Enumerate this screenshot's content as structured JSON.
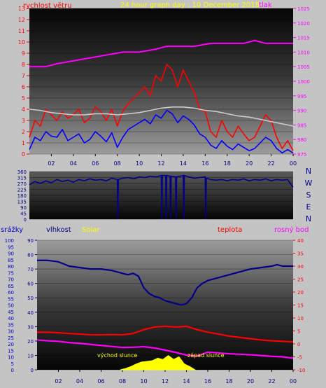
{
  "header": {
    "title": "24 hour graph day : 10 December 2018",
    "left_label": "rychlost větru",
    "right_label": "tlak",
    "colors": {
      "title": "#ffff00",
      "left_label": "#ff0000",
      "right_label": "#ff00ff"
    }
  },
  "compass": [
    "N",
    "W",
    "S",
    "E",
    "N"
  ],
  "bottom_header": {
    "labels": [
      {
        "text": "srážky",
        "color": "#0000cc"
      },
      {
        "text": "vlhkost",
        "color": "#000080"
      },
      {
        "text": "Solar",
        "color": "#ffff00"
      },
      {
        "text": "teplota",
        "color": "#ff0000"
      },
      {
        "text": "rosný bod",
        "color": "#ff00ff"
      }
    ]
  },
  "chart_data": [
    {
      "id": "wind-pressure",
      "type": "line",
      "x_ticks": [
        "02",
        "04",
        "06",
        "08",
        "10",
        "12",
        "14",
        "16",
        "18",
        "20",
        "22",
        "00"
      ],
      "xlim": [
        0,
        24
      ],
      "y_left": {
        "label": "rychlost větru",
        "range": [
          0,
          13
        ],
        "ticks": [
          0,
          1,
          2,
          3,
          4,
          5,
          6,
          7,
          8,
          9,
          10,
          11,
          12,
          13
        ]
      },
      "y_right": {
        "label": "tlak",
        "range": [
          975,
          1025
        ],
        "ticks": [
          975,
          980,
          985,
          990,
          995,
          1000,
          1005,
          1010,
          1015,
          1020,
          1025
        ]
      },
      "series": [
        {
          "name": "tlak",
          "axis": "right",
          "color": "#ff00ff",
          "x": [
            0,
            1.5,
            2.5,
            4,
            5.5,
            7,
            8.5,
            10,
            11.5,
            12.5,
            14,
            15,
            16.5,
            18,
            19.5,
            20.5,
            21.5,
            23,
            24
          ],
          "y": [
            1005,
            1005,
            1006,
            1007,
            1008,
            1009,
            1010,
            1010,
            1011,
            1012,
            1012,
            1012,
            1013,
            1013,
            1013,
            1014,
            1013,
            1013,
            1013
          ]
        },
        {
          "name": "",
          "axis": "left",
          "color": "#ff0000",
          "x": [
            0,
            0.5,
            1,
            1.5,
            2,
            2.5,
            3,
            3.5,
            4,
            4.5,
            5,
            5.5,
            6,
            6.5,
            7,
            7.5,
            8,
            8.5,
            9,
            9.5,
            10,
            10.5,
            11,
            11.5,
            12,
            12.5,
            13,
            13.5,
            14,
            14.5,
            15,
            15.5,
            16,
            16.5,
            17,
            17.5,
            18,
            18.5,
            19,
            19.5,
            20,
            20.5,
            21,
            21.5,
            22,
            22.5,
            23,
            23.5,
            24
          ],
          "y": [
            1.5,
            3,
            2.5,
            4,
            3.5,
            3,
            3.8,
            3.2,
            3.5,
            4,
            2.8,
            3.2,
            4.2,
            3.8,
            3,
            4,
            2.5,
            3.8,
            4.5,
            5,
            5.5,
            6,
            5.2,
            7,
            6.5,
            8,
            7.5,
            6,
            7.5,
            6.5,
            5.5,
            4,
            3.8,
            2,
            1.5,
            3,
            2,
            1.5,
            2.5,
            1.8,
            1.2,
            1.5,
            2.5,
            3.5,
            3,
            1.5,
            0.5,
            1.2,
            0.3
          ]
        },
        {
          "name": "",
          "axis": "left",
          "color": "#0000ff",
          "x": [
            0,
            0.5,
            1,
            1.5,
            2,
            2.5,
            3,
            3.5,
            4,
            4.5,
            5,
            5.5,
            6,
            6.5,
            7,
            7.5,
            8,
            8.5,
            9,
            9.5,
            10,
            10.5,
            11,
            11.5,
            12,
            12.5,
            13,
            13.5,
            14,
            14.5,
            15,
            15.5,
            16,
            16.5,
            17,
            17.5,
            18,
            18.5,
            19,
            19.5,
            20,
            20.5,
            21,
            21.5,
            22,
            22.5,
            23,
            23.5,
            24
          ],
          "y": [
            0.4,
            1.5,
            1.2,
            2,
            1.6,
            1.5,
            2.2,
            1.2,
            1.5,
            1.8,
            1,
            1.3,
            2,
            1.6,
            1.1,
            1.9,
            0.6,
            1.5,
            2.2,
            2.5,
            2.8,
            3.1,
            2.7,
            3.5,
            3.2,
            3.9,
            3.6,
            2.8,
            3.4,
            3.1,
            2.6,
            1.8,
            1.5,
            0.8,
            0.5,
            1.2,
            0.7,
            0.4,
            0.9,
            0.6,
            0.3,
            0.5,
            1,
            1.5,
            1.2,
            0.5,
            0.1,
            0.4,
            0.1
          ]
        },
        {
          "name": "",
          "axis": "left",
          "color": "#cccccc",
          "x": [
            0,
            1,
            2,
            3,
            4,
            5,
            6,
            7,
            8,
            9,
            10,
            11,
            12,
            13,
            14,
            15,
            16,
            17,
            18,
            19,
            20,
            21,
            22,
            23,
            24
          ],
          "y": [
            4,
            3.9,
            3.7,
            3.6,
            3.5,
            3.5,
            3.6,
            3.6,
            3.5,
            3.6,
            3.7,
            3.9,
            4.1,
            4.2,
            4.2,
            4.1,
            3.9,
            3.8,
            3.6,
            3.4,
            3.3,
            3.1,
            2.9,
            2.7,
            2.5
          ]
        }
      ]
    },
    {
      "id": "wind-direction",
      "type": "line",
      "x_ticks": [],
      "xlim": [
        0,
        24
      ],
      "y_left": {
        "range": [
          0,
          360
        ],
        "ticks": [
          0,
          45,
          90,
          135,
          180,
          225,
          270,
          315,
          360
        ]
      },
      "series": [
        {
          "name": "",
          "color": "#00008b",
          "x": [
            0,
            0.5,
            1,
            1.5,
            2,
            2.5,
            3,
            3.5,
            4,
            4.5,
            5,
            5.5,
            6,
            6.5,
            7,
            7.5,
            8,
            8.05,
            8.1,
            8.5,
            9,
            9.5,
            10,
            10.5,
            11,
            11.5,
            12,
            12.05,
            12.1,
            12.4,
            12.45,
            12.5,
            12.8,
            12.85,
            12.9,
            13.3,
            13.35,
            13.4,
            14,
            14.05,
            14.1,
            14.5,
            15,
            15.5,
            16,
            16.05,
            16.1,
            16.5,
            17,
            17.5,
            18,
            18.5,
            19,
            19.5,
            20,
            20.5,
            21,
            21.5,
            22,
            22.5,
            23,
            23.5,
            23.95,
            24
          ],
          "y": [
            260,
            285,
            270,
            290,
            275,
            300,
            285,
            295,
            280,
            300,
            290,
            305,
            295,
            300,
            290,
            310,
            300,
            0,
            300,
            310,
            315,
            305,
            320,
            315,
            325,
            320,
            330,
            0,
            330,
            330,
            0,
            330,
            325,
            0,
            325,
            320,
            0,
            320,
            330,
            0,
            330,
            320,
            310,
            315,
            320,
            0,
            310,
            300,
            295,
            300,
            290,
            300,
            295,
            305,
            290,
            300,
            295,
            305,
            290,
            300,
            295,
            300,
            245,
            250
          ]
        }
      ]
    },
    {
      "id": "humidity-temperature",
      "type": "line",
      "x_ticks": [
        "02",
        "04",
        "06",
        "08",
        "10",
        "12",
        "14",
        "16",
        "18",
        "20",
        "22",
        "00"
      ],
      "xlim": [
        0,
        24
      ],
      "y_srazky": {
        "label": "srážky",
        "range": [
          0,
          100
        ],
        "ticks": [
          0,
          5,
          10,
          15,
          20,
          25,
          30,
          35,
          40,
          45,
          50,
          55,
          60,
          65,
          70,
          75,
          80,
          85,
          90,
          95,
          100
        ]
      },
      "y_vlhkost": {
        "label": "vlhkost",
        "range": [
          0,
          90
        ],
        "ticks": [
          0,
          10,
          20,
          30,
          40,
          50,
          60,
          70,
          80,
          90
        ]
      },
      "y_right": {
        "label": "teplota",
        "range": [
          -10,
          40
        ],
        "ticks": [
          -10,
          -5,
          0,
          5,
          10,
          15,
          20,
          25,
          30,
          35,
          40
        ]
      },
      "annotations": [
        {
          "text": "východ slunce",
          "color": "#ffff00",
          "x": 7.8
        },
        {
          "text": "západ slunce",
          "color": "#ffff00",
          "x": 14.8
        }
      ],
      "series": [
        {
          "name": "vlhkost",
          "axis": "vlhkost",
          "color": "#00008b",
          "x": [
            0,
            1,
            2,
            3,
            4,
            5,
            6,
            7,
            8,
            8.5,
            9,
            9.5,
            10,
            10.5,
            11,
            11.5,
            12,
            12.5,
            13,
            13.5,
            14,
            14.5,
            15,
            15.5,
            16,
            17,
            18,
            19,
            20,
            21,
            22,
            22.5,
            23,
            24
          ],
          "y": [
            76,
            76,
            75,
            72,
            71,
            70,
            70,
            69,
            67,
            66,
            67,
            65,
            57,
            53,
            51,
            50,
            48,
            47,
            46,
            45,
            46,
            50,
            57,
            60,
            62,
            64,
            66,
            68,
            70,
            71,
            72,
            73,
            72,
            72
          ]
        },
        {
          "name": "teplota",
          "axis": "right",
          "color": "#ff0000",
          "x": [
            0,
            1,
            2,
            3,
            4,
            5,
            6,
            7,
            8,
            9,
            10,
            11,
            12,
            13,
            14,
            15,
            16,
            17,
            18,
            19,
            20,
            21,
            22,
            23,
            24
          ],
          "y": [
            4.5,
            4.5,
            4.3,
            4,
            3.8,
            3.5,
            3.5,
            3.6,
            3.5,
            4,
            5.5,
            6.5,
            6.8,
            6.5,
            6.8,
            5.5,
            4.5,
            3.8,
            3,
            2.5,
            2,
            1.5,
            1.2,
            1,
            0.8
          ]
        },
        {
          "name": "rosný bod",
          "axis": "right",
          "color": "#ff00ff",
          "x": [
            0,
            1,
            2,
            3,
            4,
            5,
            6,
            7,
            8,
            9,
            10,
            11,
            12,
            13,
            14,
            15,
            16,
            17,
            18,
            19,
            20,
            21,
            22,
            23,
            24
          ],
          "y": [
            1.5,
            1.2,
            1,
            0.5,
            0.2,
            -0.2,
            -0.6,
            -1,
            -1.4,
            -1.3,
            -1.1,
            -1.6,
            -2.4,
            -3.3,
            -4.3,
            -4.7,
            -3.2,
            -3.5,
            -3.8,
            -4,
            -4.2,
            -4.5,
            -4.8,
            -5,
            -5.5
          ]
        },
        {
          "name": "Solar",
          "axis": "srazky",
          "color": "#ffff00",
          "fill": true,
          "x": [
            7.8,
            8.3,
            8.8,
            9.3,
            9.8,
            10.3,
            10.8,
            11.3,
            11.8,
            12.3,
            12.8,
            13.3,
            13.8,
            14.3,
            14.8
          ],
          "y": [
            0,
            1,
            2.5,
            4.5,
            6,
            6.5,
            7,
            9,
            8,
            11,
            8,
            10,
            4.5,
            2.5,
            0
          ]
        }
      ]
    }
  ]
}
